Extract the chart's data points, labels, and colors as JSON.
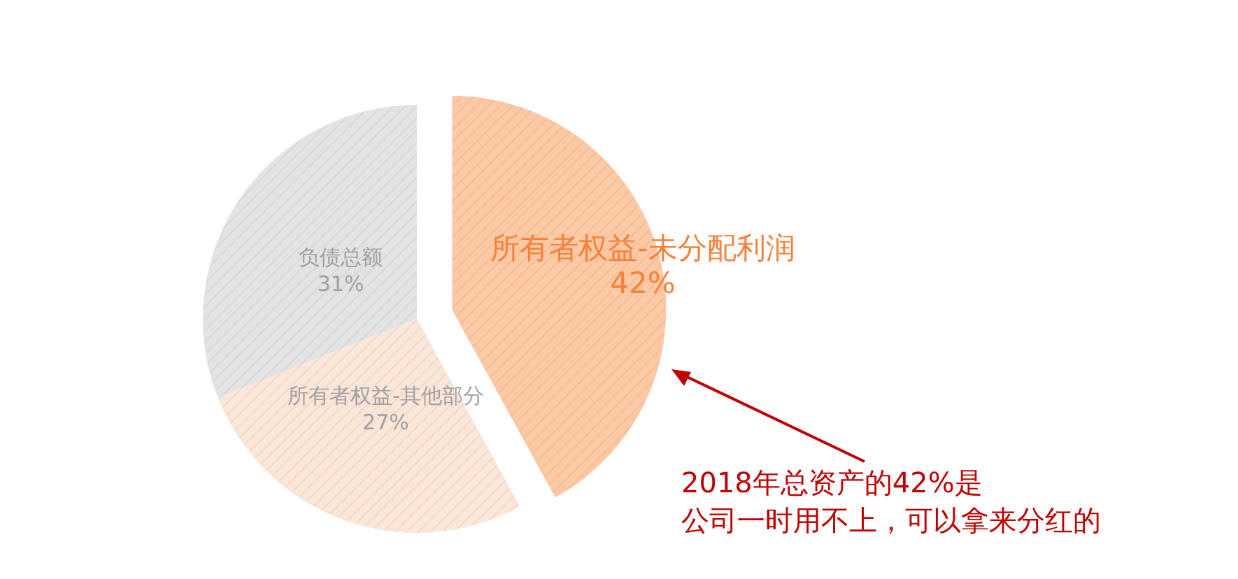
{
  "chart_data": {
    "type": "pie",
    "categories": [
      "所有者权益-未分配利润",
      "所有者权益-其他部分",
      "负债总额"
    ],
    "values": [
      42,
      27,
      31
    ],
    "colors": [
      "#fcc9a4",
      "#fbe6d8",
      "#e3e3e3"
    ],
    "value_labels": [
      "42%",
      "27%",
      "31%"
    ],
    "annotations": [
      "2018年总资产的42%是",
      "公司一时用不上，可以拿来分红的"
    ]
  }
}
